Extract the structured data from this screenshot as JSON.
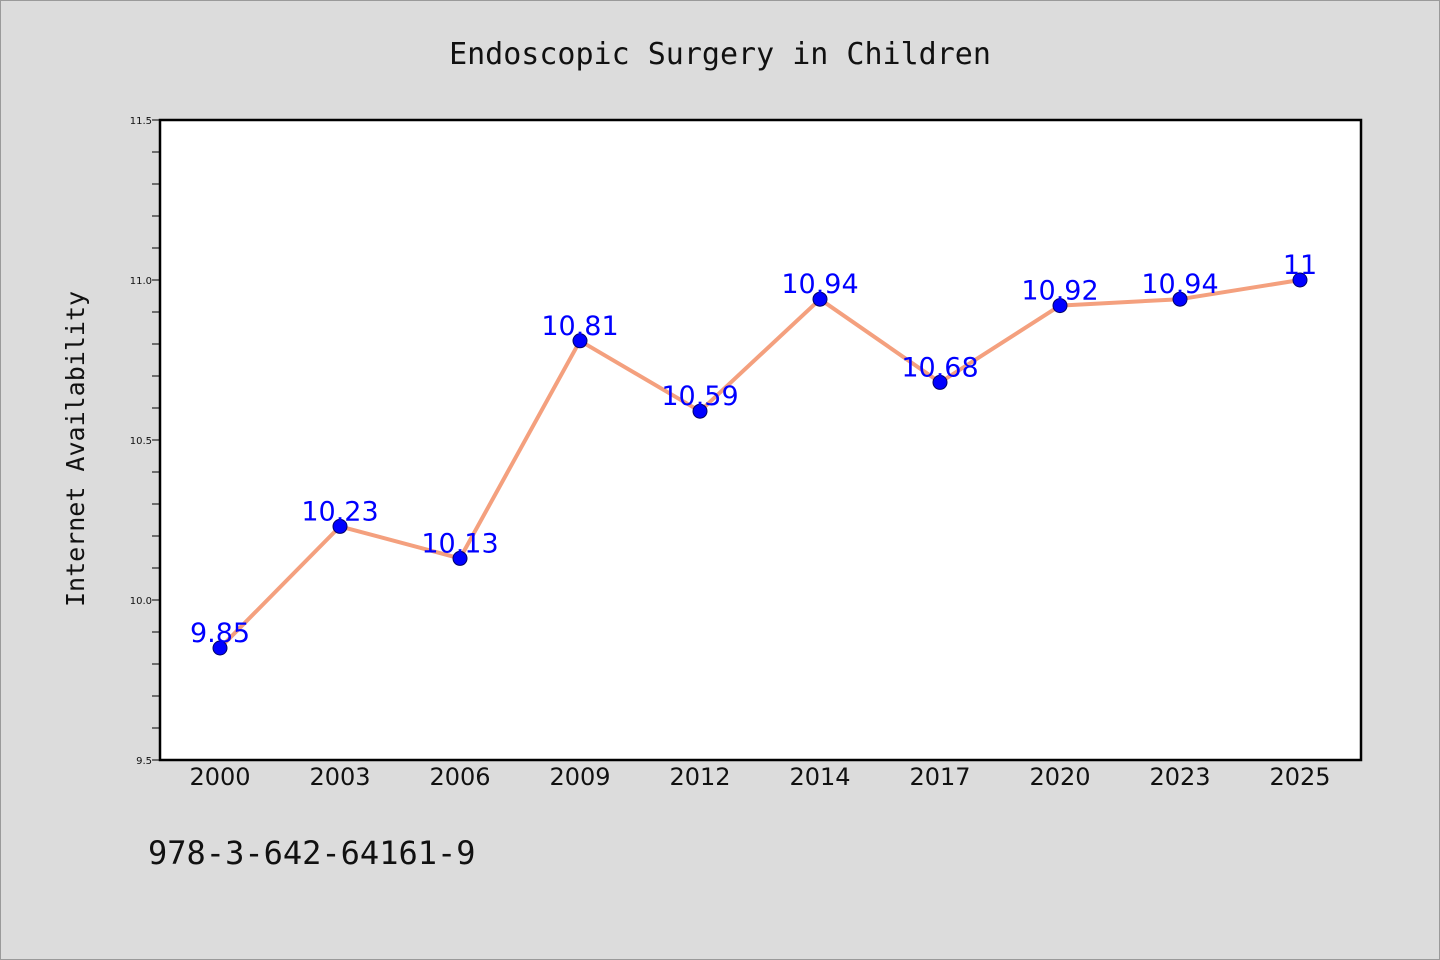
{
  "chart_data": {
    "type": "line",
    "title": "Endoscopic Surgery in Children",
    "xlabel": "",
    "ylabel": "Internet Availability",
    "categories": [
      "2000",
      "2003",
      "2006",
      "2009",
      "2012",
      "2014",
      "2017",
      "2020",
      "2023",
      "2025"
    ],
    "series": [
      {
        "values": [
          9.85,
          10.23,
          10.13,
          10.81,
          10.59,
          10.94,
          10.68,
          10.92,
          10.94,
          11
        ],
        "data_labels": [
          "9.85",
          "10.23",
          "10.13",
          "10.81",
          "10.59",
          "10.94",
          "10.68",
          "10.92",
          "10.94",
          "11"
        ],
        "line_color": "#f4a07e",
        "marker_color": "#0000ff",
        "label_color": "#0000ff"
      }
    ],
    "ylim": [
      9.5,
      11.5
    ],
    "yticks": [
      "9.5",
      "10.0",
      "10.5",
      "11.0",
      "11.5"
    ],
    "grid": false,
    "background": "#dcdcdc",
    "plot_background": "#ffffff"
  },
  "footer_code": "978-3-642-64161-9"
}
